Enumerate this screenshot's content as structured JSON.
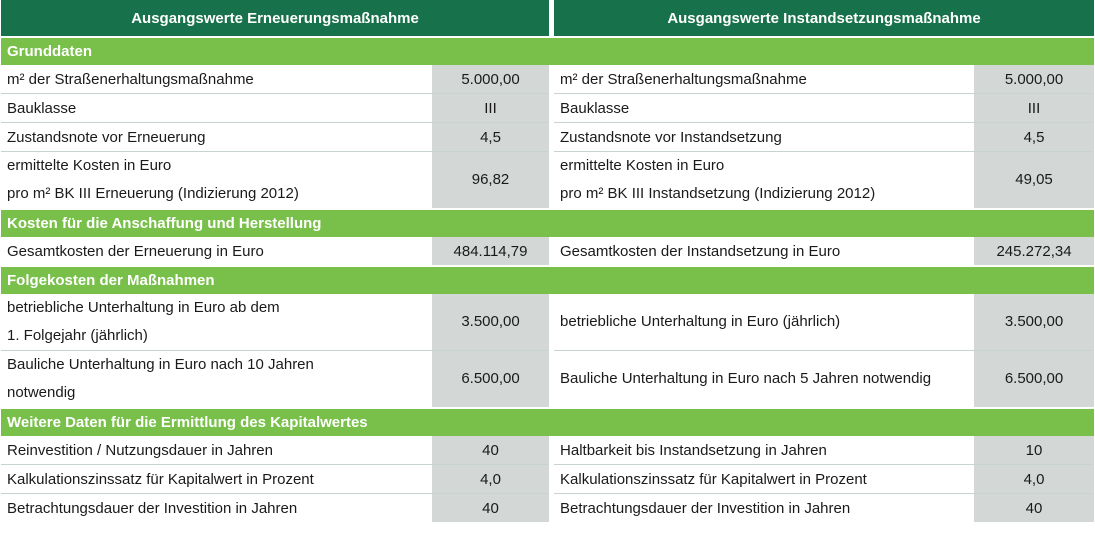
{
  "header": {
    "left": "Ausgangswerte Erneuerungsmaßnahme",
    "right": "Ausgangswerte Instandsetzungsmaßnahme"
  },
  "sections": {
    "grunddaten": "Grunddaten",
    "kosten": "Kosten für die Anschaffung und Herstellung",
    "folgekosten": "Folgekosten der Maßnahmen",
    "weitere": "Weitere Daten für die Ermittlung des Kapitalwertes"
  },
  "rows": {
    "flaeche": {
      "left_label": "m² der Straßenerhaltungsmaßnahme",
      "left_value": "5.000,00",
      "right_label": "m² der Straßenerhaltungsmaßnahme",
      "right_value": "5.000,00"
    },
    "bauklasse": {
      "left_label": "Bauklasse",
      "left_value": "III",
      "right_label": "Bauklasse",
      "right_value": "III"
    },
    "zustand": {
      "left_label": "Zustandsnote vor Erneuerung",
      "left_value": "4,5",
      "right_label": "Zustandsnote vor Instandsetzung",
      "right_value": "4,5"
    },
    "kosten_m2": {
      "left_line1": "ermittelte Kosten in Euro",
      "left_line2": "pro m² BK III Erneuerung (Indizierung 2012)",
      "left_value": "96,82",
      "right_line1": "ermittelte Kosten in Euro",
      "right_line2": "pro m² BK III Instandsetzung (Indizierung 2012)",
      "right_value": "49,05"
    },
    "gesamtkosten": {
      "left_label": "Gesamtkosten der Erneuerung in Euro",
      "left_value": "484.114,79",
      "right_label": "Gesamtkosten der Instandsetzung in Euro",
      "right_value": "245.272,34"
    },
    "betrieblich": {
      "left_line1": "betriebliche Unterhaltung in Euro ab dem",
      "left_line2": "1. Folgejahr (jährlich)",
      "left_value": "3.500,00",
      "right_label": "betriebliche Unterhaltung in Euro (jährlich)",
      "right_value": "3.500,00"
    },
    "baulich": {
      "left_line1": "Bauliche Unterhaltung in Euro nach 10 Jahren",
      "left_line2": "notwendig",
      "left_value": "6.500,00",
      "right_label": "Bauliche Unterhaltung in Euro nach 5 Jahren notwendig",
      "right_value": "6.500,00"
    },
    "reinvestition": {
      "left_label": "Reinvestition / Nutzungsdauer in Jahren",
      "left_value": "40",
      "right_label": "Haltbarkeit bis Instandsetzung in Jahren",
      "right_value": "10"
    },
    "zinssatz": {
      "left_label": "Kalkulationszinssatz für Kapitalwert in Prozent",
      "left_value": "4,0",
      "right_label": "Kalkulationszinssatz für Kapitalwert in Prozent",
      "right_value": "4,0"
    },
    "dauer": {
      "left_label": "Betrachtungsdauer der Investition in Jahren",
      "left_value": "40",
      "right_label": "Betrachtungsdauer der Investition in Jahren",
      "right_value": "40"
    }
  },
  "colors": {
    "header_bg": "#17714a",
    "section_bg": "#79c04a",
    "value_bg": "#d3d8d6"
  }
}
